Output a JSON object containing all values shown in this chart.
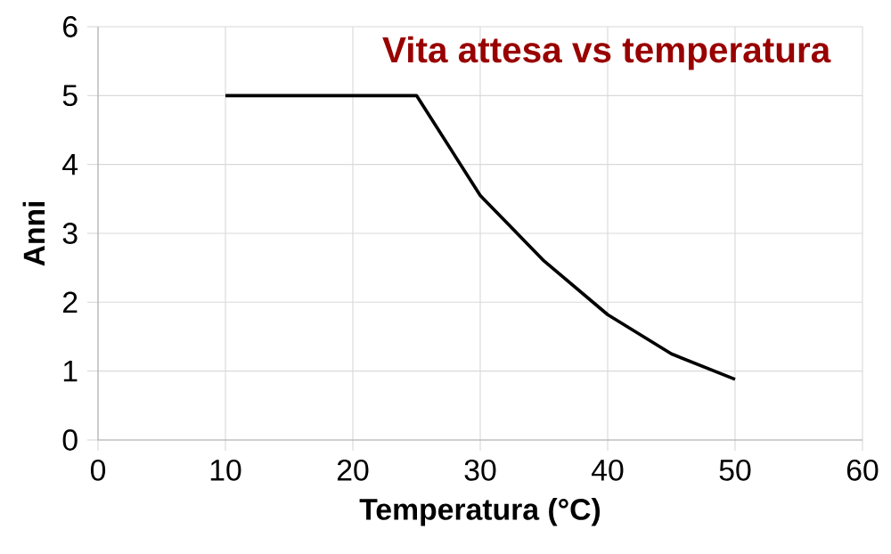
{
  "chart_data": {
    "type": "line",
    "title": "Vita attesa vs temperatura",
    "xlabel": "Temperatura (°C)",
    "ylabel": "Anni",
    "x": [
      10,
      15,
      20,
      25,
      30,
      35,
      40,
      45,
      50
    ],
    "series": [
      {
        "color": "#000000",
        "values": [
          5,
          5,
          5,
          5,
          3.55,
          2.6,
          1.82,
          1.25,
          0.88
        ]
      }
    ],
    "xlim": [
      0,
      60
    ],
    "xticks": [
      0,
      10,
      20,
      30,
      40,
      50,
      60
    ],
    "ylim": [
      0,
      6
    ],
    "yticks": [
      0,
      1,
      2,
      3,
      4,
      5,
      6
    ],
    "grid": true
  }
}
